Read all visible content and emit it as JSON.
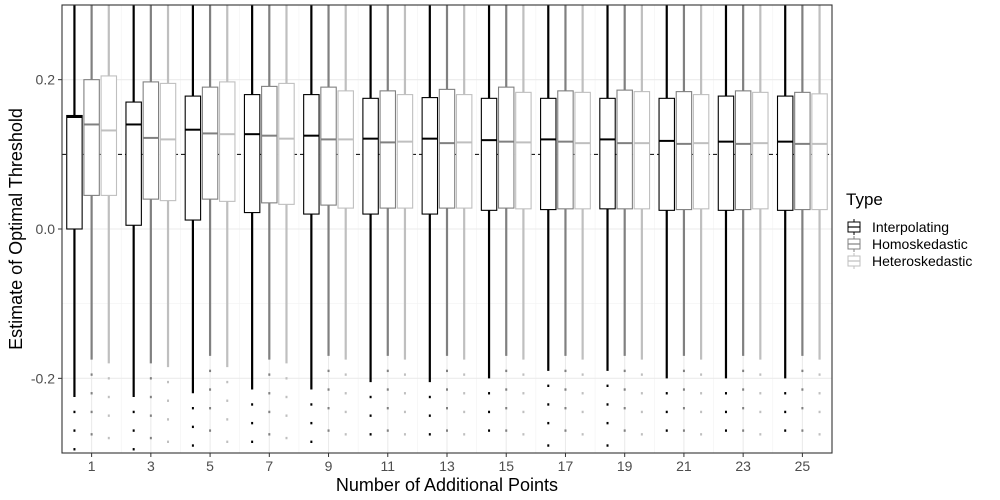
{
  "chart_data": {
    "type": "box",
    "title": "",
    "xlabel": "Number of Additional Points",
    "ylabel": "Estimate of Optimal Threshold",
    "xlim": [
      0,
      26
    ],
    "ylim": [
      -0.3,
      0.3
    ],
    "x_ticks": [
      1,
      3,
      5,
      7,
      9,
      11,
      13,
      15,
      17,
      19,
      21,
      23,
      25
    ],
    "y_ticks": [
      -0.2,
      0.0,
      0.2
    ],
    "y_tick_labels": [
      "-0.2",
      "0.0",
      "0.2"
    ],
    "reference_line": 0.1,
    "grid": true,
    "legend": {
      "title": "Type",
      "position": "right"
    },
    "series": [
      {
        "name": "Interpolating",
        "color": "#000000",
        "boxes": [
          {
            "x": 1,
            "q1": 0.0,
            "median": 0.15,
            "q3": 0.152,
            "whisker_low": -0.225,
            "whisker_high": 0.3
          },
          {
            "x": 3,
            "q1": 0.005,
            "median": 0.14,
            "q3": 0.17,
            "whisker_low": -0.225,
            "whisker_high": 0.3
          },
          {
            "x": 5,
            "q1": 0.012,
            "median": 0.133,
            "q3": 0.178,
            "whisker_low": -0.22,
            "whisker_high": 0.3
          },
          {
            "x": 7,
            "q1": 0.022,
            "median": 0.127,
            "q3": 0.18,
            "whisker_low": -0.215,
            "whisker_high": 0.3
          },
          {
            "x": 9,
            "q1": 0.02,
            "median": 0.125,
            "q3": 0.18,
            "whisker_low": -0.215,
            "whisker_high": 0.3
          },
          {
            "x": 11,
            "q1": 0.02,
            "median": 0.121,
            "q3": 0.175,
            "whisker_low": -0.205,
            "whisker_high": 0.3
          },
          {
            "x": 13,
            "q1": 0.02,
            "median": 0.121,
            "q3": 0.176,
            "whisker_low": -0.205,
            "whisker_high": 0.3
          },
          {
            "x": 15,
            "q1": 0.025,
            "median": 0.119,
            "q3": 0.175,
            "whisker_low": -0.2,
            "whisker_high": 0.3
          },
          {
            "x": 17,
            "q1": 0.026,
            "median": 0.12,
            "q3": 0.175,
            "whisker_low": -0.19,
            "whisker_high": 0.3
          },
          {
            "x": 19,
            "q1": 0.027,
            "median": 0.12,
            "q3": 0.175,
            "whisker_low": -0.19,
            "whisker_high": 0.3
          },
          {
            "x": 21,
            "q1": 0.025,
            "median": 0.118,
            "q3": 0.175,
            "whisker_low": -0.2,
            "whisker_high": 0.3
          },
          {
            "x": 23,
            "q1": 0.025,
            "median": 0.117,
            "q3": 0.178,
            "whisker_low": -0.2,
            "whisker_high": 0.3
          },
          {
            "x": 25,
            "q1": 0.025,
            "median": 0.117,
            "q3": 0.178,
            "whisker_low": -0.2,
            "whisker_high": 0.3
          }
        ]
      },
      {
        "name": "Homoskedastic",
        "color": "#808080",
        "boxes": [
          {
            "x": 1,
            "q1": 0.045,
            "median": 0.14,
            "q3": 0.2,
            "whisker_low": -0.175,
            "whisker_high": 0.3
          },
          {
            "x": 3,
            "q1": 0.04,
            "median": 0.122,
            "q3": 0.197,
            "whisker_low": -0.18,
            "whisker_high": 0.3
          },
          {
            "x": 5,
            "q1": 0.04,
            "median": 0.128,
            "q3": 0.19,
            "whisker_low": -0.17,
            "whisker_high": 0.3
          },
          {
            "x": 7,
            "q1": 0.035,
            "median": 0.125,
            "q3": 0.191,
            "whisker_low": -0.175,
            "whisker_high": 0.3
          },
          {
            "x": 9,
            "q1": 0.032,
            "median": 0.12,
            "q3": 0.19,
            "whisker_low": -0.17,
            "whisker_high": 0.3
          },
          {
            "x": 11,
            "q1": 0.028,
            "median": 0.116,
            "q3": 0.185,
            "whisker_low": -0.17,
            "whisker_high": 0.3
          },
          {
            "x": 13,
            "q1": 0.028,
            "median": 0.115,
            "q3": 0.187,
            "whisker_low": -0.17,
            "whisker_high": 0.3
          },
          {
            "x": 15,
            "q1": 0.028,
            "median": 0.117,
            "q3": 0.19,
            "whisker_low": -0.17,
            "whisker_high": 0.3
          },
          {
            "x": 17,
            "q1": 0.027,
            "median": 0.117,
            "q3": 0.185,
            "whisker_low": -0.17,
            "whisker_high": 0.3
          },
          {
            "x": 19,
            "q1": 0.027,
            "median": 0.115,
            "q3": 0.186,
            "whisker_low": -0.17,
            "whisker_high": 0.3
          },
          {
            "x": 21,
            "q1": 0.026,
            "median": 0.114,
            "q3": 0.184,
            "whisker_low": -0.17,
            "whisker_high": 0.3
          },
          {
            "x": 23,
            "q1": 0.026,
            "median": 0.114,
            "q3": 0.185,
            "whisker_low": -0.17,
            "whisker_high": 0.3
          },
          {
            "x": 25,
            "q1": 0.026,
            "median": 0.114,
            "q3": 0.183,
            "whisker_low": -0.17,
            "whisker_high": 0.3
          }
        ]
      },
      {
        "name": "Heteroskedastic",
        "color": "#bfbfbf",
        "boxes": [
          {
            "x": 1,
            "q1": 0.045,
            "median": 0.132,
            "q3": 0.205,
            "whisker_low": -0.18,
            "whisker_high": 0.3
          },
          {
            "x": 3,
            "q1": 0.038,
            "median": 0.12,
            "q3": 0.195,
            "whisker_low": -0.185,
            "whisker_high": 0.3
          },
          {
            "x": 5,
            "q1": 0.037,
            "median": 0.127,
            "q3": 0.197,
            "whisker_low": -0.185,
            "whisker_high": 0.3
          },
          {
            "x": 7,
            "q1": 0.033,
            "median": 0.121,
            "q3": 0.195,
            "whisker_low": -0.18,
            "whisker_high": 0.3
          },
          {
            "x": 9,
            "q1": 0.028,
            "median": 0.12,
            "q3": 0.185,
            "whisker_low": -0.175,
            "whisker_high": 0.3
          },
          {
            "x": 11,
            "q1": 0.028,
            "median": 0.117,
            "q3": 0.18,
            "whisker_low": -0.175,
            "whisker_high": 0.3
          },
          {
            "x": 13,
            "q1": 0.028,
            "median": 0.116,
            "q3": 0.18,
            "whisker_low": -0.175,
            "whisker_high": 0.3
          },
          {
            "x": 15,
            "q1": 0.027,
            "median": 0.116,
            "q3": 0.183,
            "whisker_low": -0.175,
            "whisker_high": 0.3
          },
          {
            "x": 17,
            "q1": 0.027,
            "median": 0.115,
            "q3": 0.183,
            "whisker_low": -0.175,
            "whisker_high": 0.3
          },
          {
            "x": 19,
            "q1": 0.027,
            "median": 0.115,
            "q3": 0.184,
            "whisker_low": -0.175,
            "whisker_high": 0.3
          },
          {
            "x": 21,
            "q1": 0.027,
            "median": 0.115,
            "q3": 0.18,
            "whisker_low": -0.175,
            "whisker_high": 0.3
          },
          {
            "x": 23,
            "q1": 0.027,
            "median": 0.115,
            "q3": 0.183,
            "whisker_low": -0.175,
            "whisker_high": 0.3
          },
          {
            "x": 25,
            "q1": 0.026,
            "median": 0.114,
            "q3": 0.181,
            "whisker_low": -0.175,
            "whisker_high": 0.3
          }
        ]
      }
    ]
  }
}
